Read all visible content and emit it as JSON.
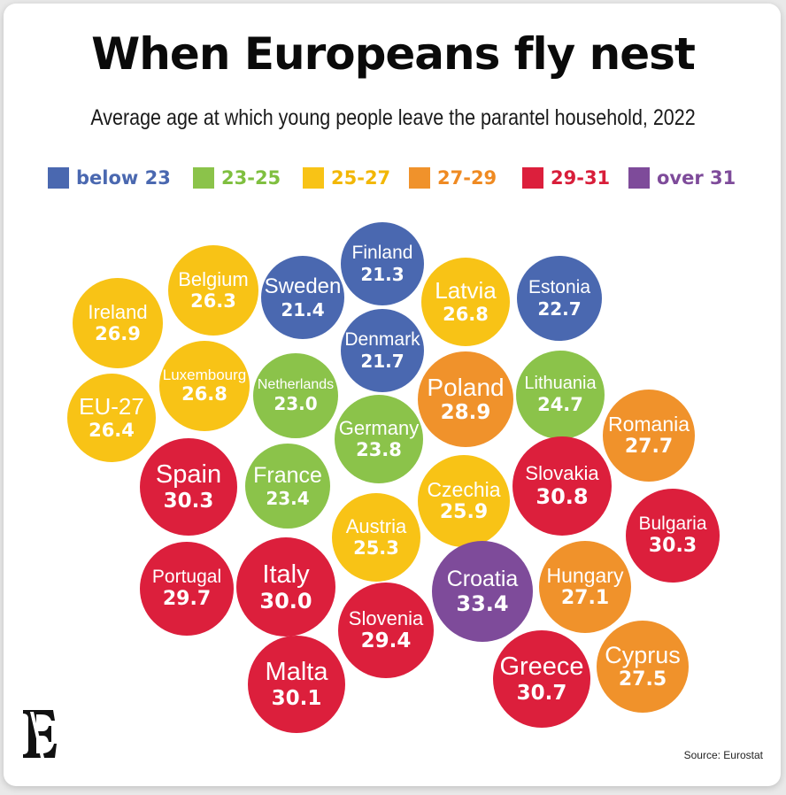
{
  "chart_data": {
    "type": "bubble",
    "title": "When Europeans fly nest",
    "subtitle": "Average age at which young people leave the parantel household, 2022",
    "source": "Source: Eurostat",
    "legend": [
      {
        "label": "below 23",
        "color": "#4a68b0",
        "text_color": "#4a68b0"
      },
      {
        "label": "23-25",
        "color": "#8bc34a",
        "text_color": "#7fbf3f"
      },
      {
        "label": "25-27",
        "color": "#f8c316",
        "text_color": "#f2b705"
      },
      {
        "label": "27-29",
        "color": "#f0922b",
        "text_color": "#ef8a22"
      },
      {
        "label": "29-31",
        "color": "#dc1f3c",
        "text_color": "#d81e3a"
      },
      {
        "label": "over 31",
        "color": "#7e4b9a",
        "text_color": "#7e4b9a"
      }
    ],
    "bins": [
      {
        "max": 23,
        "color": "#4a68b0"
      },
      {
        "max": 25,
        "color": "#8bc34a"
      },
      {
        "max": 27,
        "color": "#f8c316"
      },
      {
        "max": 29,
        "color": "#f0922b"
      },
      {
        "max": 31,
        "color": "#dc1f3c"
      },
      {
        "max": 99,
        "color": "#7e4b9a"
      }
    ],
    "countries": [
      {
        "name": "Finland",
        "value": 21.3
      },
      {
        "name": "Belgium",
        "value": 26.3
      },
      {
        "name": "Sweden",
        "value": 21.4
      },
      {
        "name": "Latvia",
        "value": 26.8
      },
      {
        "name": "Estonia",
        "value": 22.7
      },
      {
        "name": "Ireland",
        "value": 26.9
      },
      {
        "name": "Denmark",
        "value": 21.7
      },
      {
        "name": "Luxembourg",
        "value": 26.8
      },
      {
        "name": "Netherlands",
        "value": 23.0
      },
      {
        "name": "Poland",
        "value": 28.9
      },
      {
        "name": "Lithuania",
        "value": 24.7
      },
      {
        "name": "EU-27",
        "value": 26.4
      },
      {
        "name": "Germany",
        "value": 23.8
      },
      {
        "name": "Romania",
        "value": 27.7
      },
      {
        "name": "Spain",
        "value": 30.3
      },
      {
        "name": "France",
        "value": 23.4
      },
      {
        "name": "Czechia",
        "value": 25.9
      },
      {
        "name": "Slovakia",
        "value": 30.8
      },
      {
        "name": "Austria",
        "value": 25.3
      },
      {
        "name": "Bulgaria",
        "value": 30.3
      },
      {
        "name": "Portugal",
        "value": 29.7
      },
      {
        "name": "Italy",
        "value": 30.0
      },
      {
        "name": "Croatia",
        "value": 33.4
      },
      {
        "name": "Hungary",
        "value": 27.1
      },
      {
        "name": "Slovenia",
        "value": 29.4
      },
      {
        "name": "Cyprus",
        "value": 27.5
      },
      {
        "name": "Greece",
        "value": 30.7
      },
      {
        "name": "Malta",
        "value": 30.1
      }
    ]
  },
  "branding": {
    "logo_icon": "economist-e-icon"
  }
}
